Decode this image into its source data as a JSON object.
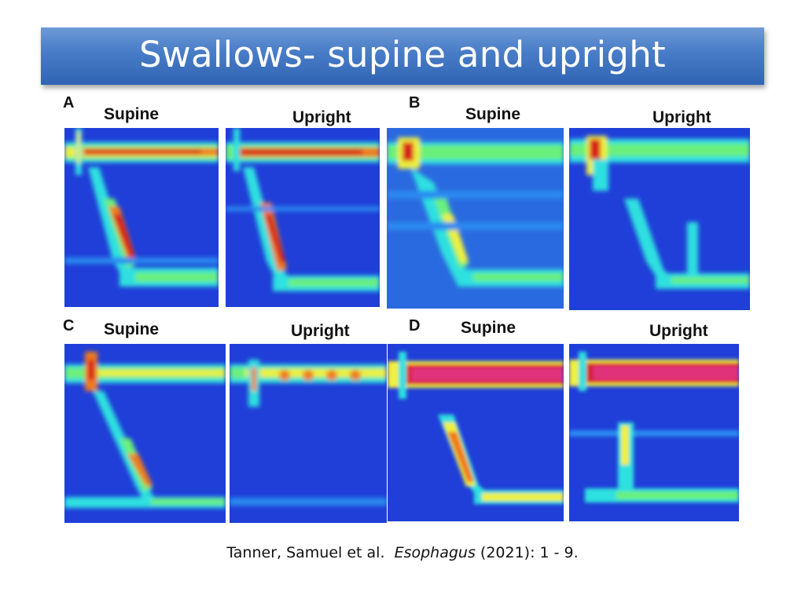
{
  "slide": {
    "title": "Swallows- supine and upright"
  },
  "figure": {
    "panels": [
      {
        "letter": "A",
        "plots": [
          {
            "label": "Supine"
          },
          {
            "label": "Upright"
          }
        ]
      },
      {
        "letter": "B",
        "plots": [
          {
            "label": "Supine"
          },
          {
            "label": "Upright"
          }
        ]
      },
      {
        "letter": "C",
        "plots": [
          {
            "label": "Supine"
          },
          {
            "label": "Upright"
          }
        ]
      },
      {
        "letter": "D",
        "plots": [
          {
            "label": "Supine"
          },
          {
            "label": "Upright"
          }
        ]
      }
    ],
    "colormap": [
      "#1f3fd8",
      "#2a8af0",
      "#2ee0e0",
      "#6af07a",
      "#f0f03c",
      "#f07a1e",
      "#d81e1e",
      "#e0307a"
    ]
  },
  "citation": {
    "authors": "Tanner, Samuel et al.",
    "journal": "Esophagus",
    "details": "(2021): 1 - 9."
  }
}
